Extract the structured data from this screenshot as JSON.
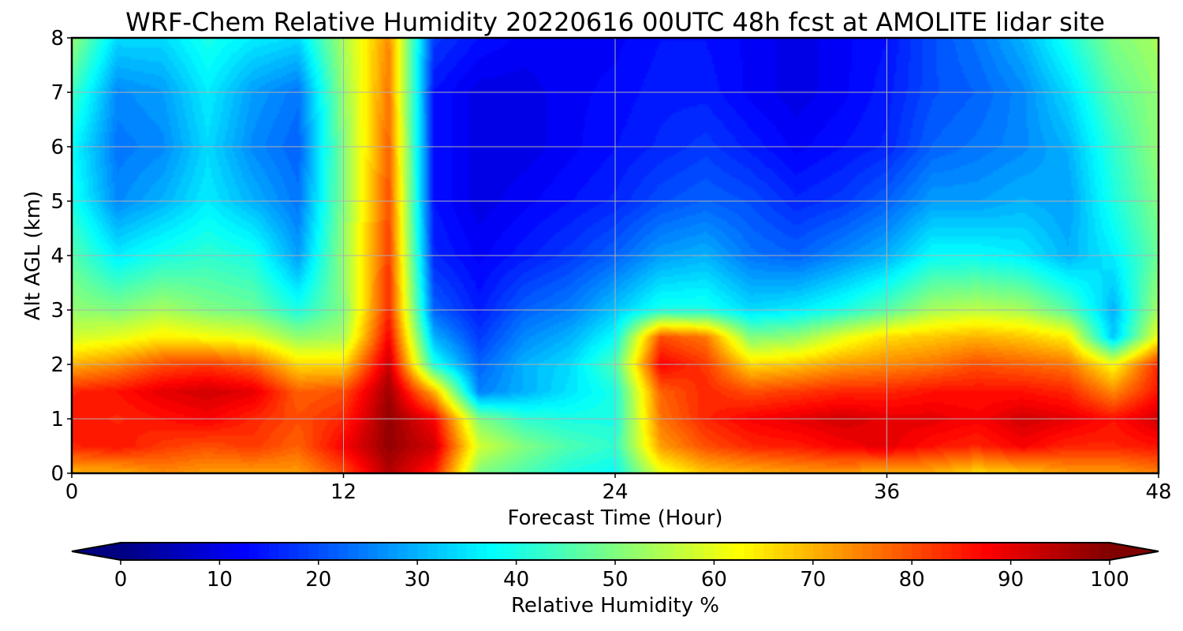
{
  "chart_data": {
    "type": "heatmap",
    "title": "WRF-Chem Relative Humidity 20220616 00UTC 48h fcst at AMOLITE lidar site",
    "xlabel": "Forecast Time (Hour)",
    "ylabel": "Alt AGL (km)",
    "xlim": [
      0,
      48
    ],
    "ylim": [
      0,
      8
    ],
    "x_ticks": [
      "0",
      "12",
      "24",
      "36",
      "48"
    ],
    "y_ticks": [
      "0",
      "1",
      "2",
      "3",
      "4",
      "5",
      "6",
      "7",
      "8"
    ],
    "grid": true,
    "colorscale": "jet",
    "colorbar": {
      "label": "Relative Humidity %",
      "range": [
        0,
        100
      ],
      "ticks": [
        "0",
        "10",
        "20",
        "30",
        "40",
        "50",
        "60",
        "70",
        "80",
        "90",
        "100"
      ],
      "extend": "both"
    },
    "x": [
      0,
      2,
      4,
      6,
      8,
      10,
      12,
      14,
      16,
      18,
      20,
      22,
      24,
      26,
      28,
      30,
      32,
      34,
      36,
      38,
      40,
      42,
      44,
      46,
      48
    ],
    "y": [
      0,
      0.5,
      1,
      1.5,
      2,
      2.5,
      3,
      4,
      5,
      6,
      7,
      8
    ],
    "z": [
      [
        70,
        70,
        74,
        72,
        72,
        72,
        80,
        95,
        85,
        50,
        45,
        40,
        38,
        60,
        68,
        70,
        72,
        72,
        70,
        70,
        66,
        68,
        72,
        72,
        75
      ],
      [
        84,
        86,
        82,
        80,
        82,
        78,
        88,
        98,
        92,
        58,
        50,
        45,
        42,
        72,
        80,
        84,
        85,
        88,
        90,
        86,
        84,
        88,
        84,
        84,
        86
      ],
      [
        86,
        84,
        86,
        88,
        84,
        80,
        84,
        98,
        88,
        50,
        42,
        40,
        40,
        76,
        84,
        88,
        90,
        92,
        90,
        90,
        88,
        92,
        90,
        86,
        92
      ],
      [
        84,
        86,
        90,
        92,
        90,
        78,
        80,
        97,
        70,
        25,
        30,
        35,
        40,
        78,
        84,
        80,
        82,
        84,
        84,
        86,
        86,
        86,
        84,
        74,
        86
      ],
      [
        70,
        74,
        80,
        82,
        78,
        66,
        66,
        93,
        40,
        22,
        30,
        34,
        45,
        88,
        82,
        66,
        68,
        72,
        74,
        76,
        80,
        78,
        76,
        62,
        84
      ],
      [
        58,
        60,
        64,
        62,
        60,
        52,
        54,
        88,
        30,
        18,
        26,
        30,
        38,
        80,
        76,
        50,
        52,
        60,
        66,
        68,
        70,
        68,
        64,
        32,
        62
      ],
      [
        52,
        50,
        54,
        50,
        48,
        40,
        50,
        84,
        22,
        15,
        22,
        25,
        32,
        40,
        40,
        34,
        36,
        40,
        46,
        54,
        56,
        54,
        46,
        30,
        54
      ],
      [
        46,
        36,
        40,
        42,
        40,
        28,
        52,
        82,
        16,
        12,
        15,
        18,
        22,
        28,
        30,
        24,
        22,
        26,
        30,
        38,
        38,
        36,
        30,
        36,
        48
      ],
      [
        40,
        26,
        30,
        36,
        30,
        24,
        50,
        80,
        14,
        10,
        12,
        14,
        16,
        20,
        22,
        20,
        16,
        18,
        22,
        28,
        28,
        30,
        28,
        40,
        50
      ],
      [
        38,
        24,
        26,
        34,
        26,
        22,
        50,
        78,
        14,
        10,
        10,
        12,
        14,
        16,
        18,
        15,
        12,
        14,
        16,
        22,
        24,
        26,
        30,
        42,
        52
      ],
      [
        44,
        26,
        28,
        36,
        28,
        24,
        52,
        76,
        14,
        10,
        10,
        12,
        13,
        15,
        15,
        12,
        10,
        12,
        15,
        20,
        22,
        26,
        34,
        46,
        52
      ],
      [
        52,
        34,
        34,
        40,
        36,
        34,
        54,
        74,
        18,
        14,
        12,
        12,
        12,
        14,
        14,
        12,
        10,
        12,
        14,
        20,
        24,
        30,
        40,
        50,
        54
      ]
    ]
  }
}
